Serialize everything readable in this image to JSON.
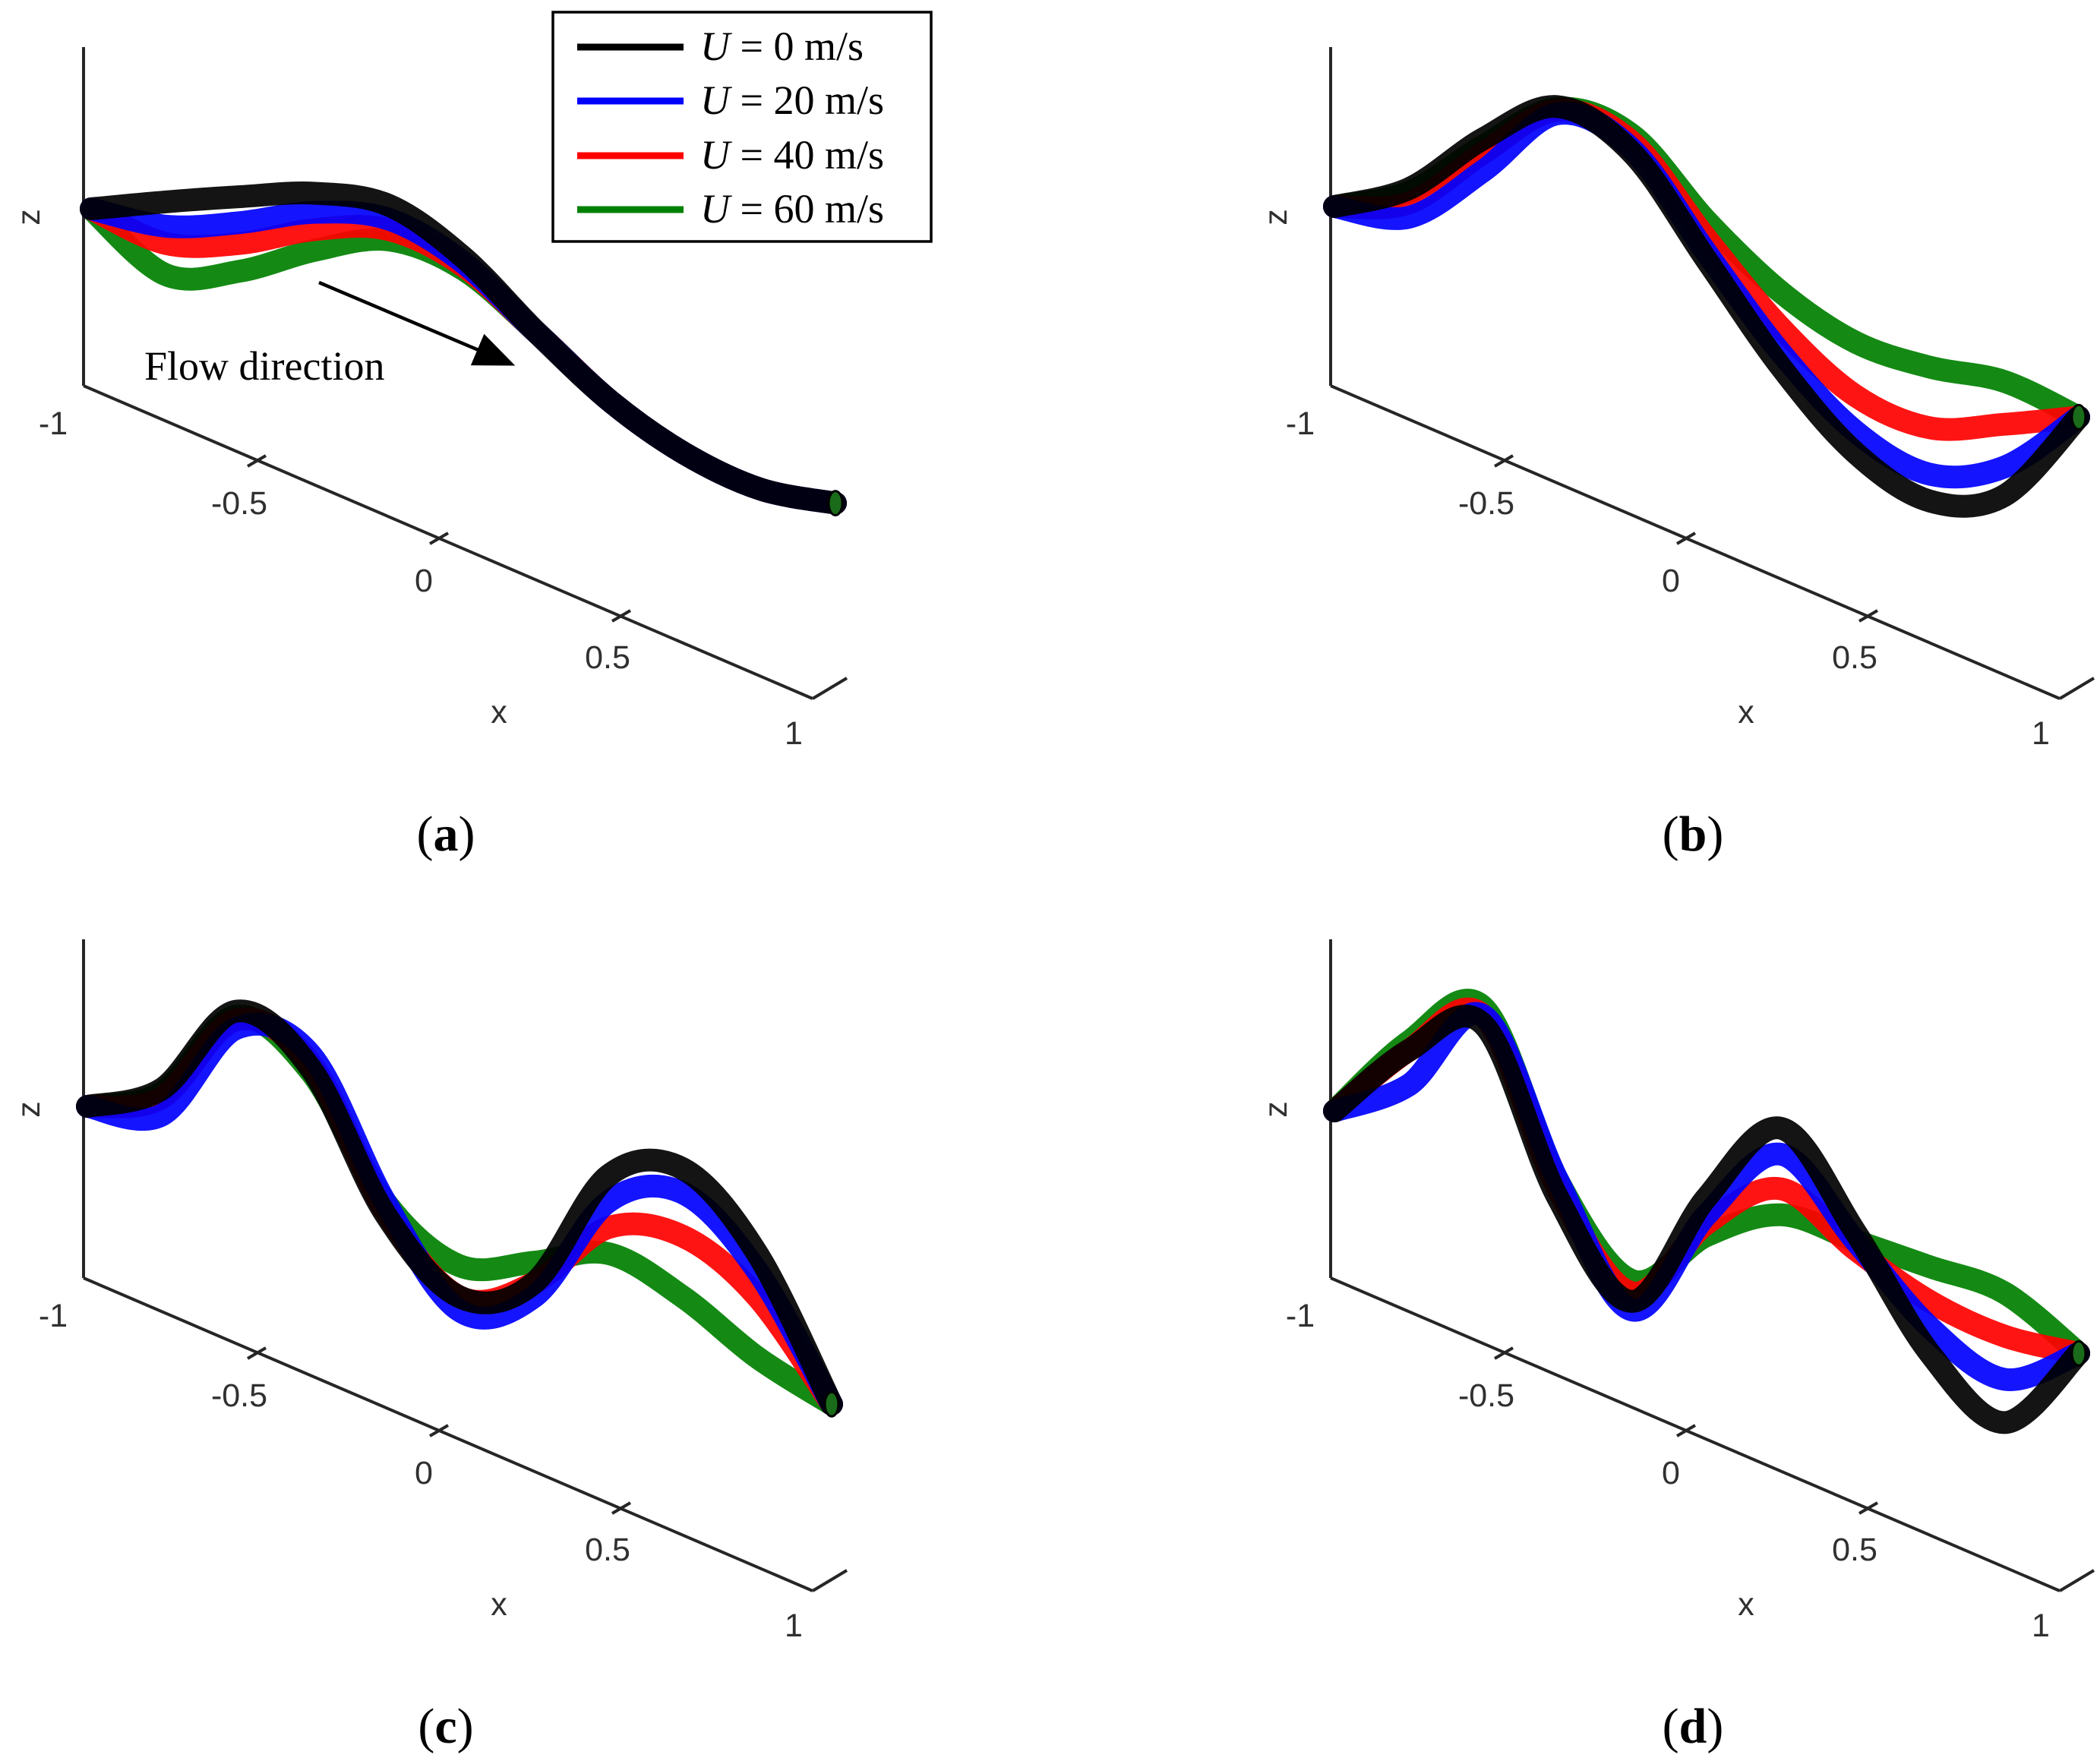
{
  "figure": {
    "type": "multi-panel 3D line plot (x-z projection)",
    "legend": {
      "position": "top-right of panel (a)",
      "entries": [
        {
          "symbol": "U",
          "text": " = 0 m/s",
          "color": "#000000"
        },
        {
          "symbol": "U",
          "text": " = 20 m/s",
          "color": "#0000ff"
        },
        {
          "symbol": "U",
          "text": " = 40 m/s",
          "color": "#ff0000"
        },
        {
          "symbol": "U",
          "text": " = 60 m/s",
          "color": "#008000"
        }
      ]
    },
    "annotation": {
      "text": "Flow direction",
      "panel": "a"
    }
  },
  "chart_data": [
    {
      "type": "line",
      "panel": "a",
      "caption": {
        "open": "(",
        "label": "a",
        "close": ")"
      },
      "xlabel": "x",
      "zlabel": "z",
      "x_ticks": [
        "-1",
        "-0.5",
        "0",
        "0.5",
        "1"
      ],
      "xlim": [
        -1,
        1
      ],
      "zlim": [
        -2,
        2.2
      ],
      "x": [
        -1,
        -0.8,
        -0.6,
        -0.4,
        -0.2,
        0,
        0.2,
        0.4,
        0.6,
        0.8,
        1
      ],
      "series": [
        {
          "name": "U = 0 m/s",
          "color": "#000000",
          "values": [
            0,
            0.04,
            0.07,
            0.09,
            0.02,
            -0.28,
            -0.72,
            -1.12,
            -1.42,
            -1.62,
            -1.7
          ]
        },
        {
          "name": "U = 20 m/s",
          "color": "#0000ff",
          "values": [
            0,
            -0.1,
            -0.08,
            -0.02,
            -0.06,
            -0.31,
            -0.72,
            -1.12,
            -1.42,
            -1.62,
            -1.7
          ]
        },
        {
          "name": "U = 40 m/s",
          "color": "#ff0000",
          "values": [
            0,
            -0.2,
            -0.2,
            -0.12,
            -0.12,
            -0.33,
            -0.72,
            -1.12,
            -1.42,
            -1.62,
            -1.7
          ]
        },
        {
          "name": "U = 60 m/s",
          "color": "#008000",
          "values": [
            0,
            -0.38,
            -0.36,
            -0.24,
            -0.18,
            -0.35,
            -0.72,
            -1.12,
            -1.42,
            -1.62,
            -1.7
          ]
        }
      ]
    },
    {
      "type": "line",
      "panel": "b",
      "caption": {
        "open": "(",
        "label": "b",
        "close": ")"
      },
      "xlabel": "x",
      "zlabel": "z",
      "x_ticks": [
        "-1",
        "-0.5",
        "0",
        "0.5",
        "1"
      ],
      "xlim": [
        -1,
        1
      ],
      "zlim": [
        -2,
        2.2
      ],
      "x": [
        -1,
        -0.8,
        -0.6,
        -0.4,
        -0.2,
        0,
        0.2,
        0.4,
        0.6,
        0.8,
        1
      ],
      "series": [
        {
          "name": "U = 0 m/s",
          "color": "#000000",
          "values": [
            0,
            0.1,
            0.38,
            0.56,
            0.3,
            -0.3,
            -0.9,
            -1.38,
            -1.65,
            -1.62,
            -1.18
          ]
        },
        {
          "name": "U = 20 m/s",
          "color": "#0000ff",
          "values": [
            0,
            -0.06,
            0.2,
            0.52,
            0.32,
            -0.26,
            -0.82,
            -1.26,
            -1.5,
            -1.46,
            -1.18
          ]
        },
        {
          "name": "U = 40 m/s",
          "color": "#ff0000",
          "values": [
            0,
            0.02,
            0.3,
            0.54,
            0.36,
            -0.18,
            -0.68,
            -1.06,
            -1.24,
            -1.22,
            -1.18
          ]
        },
        {
          "name": "U = 60 m/s",
          "color": "#008000",
          "values": [
            0,
            0.08,
            0.34,
            0.55,
            0.4,
            -0.08,
            -0.48,
            -0.76,
            -0.9,
            -0.98,
            -1.18
          ]
        }
      ]
    },
    {
      "type": "line",
      "panel": "c",
      "caption": {
        "open": "(",
        "label": "c",
        "close": ")"
      },
      "xlabel": "x",
      "zlabel": "z",
      "x_ticks": [
        "-1",
        "-0.5",
        "0",
        "0.5",
        "1"
      ],
      "xlim": [
        -1,
        1
      ],
      "zlim": [
        -2,
        2.2
      ],
      "x": [
        -1,
        -0.8,
        -0.6,
        -0.4,
        -0.2,
        0,
        0.2,
        0.4,
        0.6,
        0.8,
        1
      ],
      "series": [
        {
          "name": "U = 0 m/s",
          "color": "#000000",
          "values": [
            0,
            0.1,
            0.55,
            0.22,
            -0.62,
            -1.1,
            -1.02,
            -0.4,
            -0.36,
            -0.85,
            -1.72
          ]
        },
        {
          "name": "U = 20 m/s",
          "color": "#0000ff",
          "values": [
            0,
            -0.05,
            0.45,
            0.3,
            -0.55,
            -1.18,
            -1.1,
            -0.55,
            -0.5,
            -0.95,
            -1.72
          ]
        },
        {
          "name": "U = 40 m/s",
          "color": "#ff0000",
          "values": [
            0,
            0.05,
            0.5,
            0.25,
            -0.6,
            -1.1,
            -1.02,
            -0.7,
            -0.75,
            -1.1,
            -1.72
          ]
        },
        {
          "name": "U = 60 m/s",
          "color": "#008000",
          "values": [
            0,
            0.08,
            0.52,
            0.2,
            -0.55,
            -0.92,
            -0.9,
            -0.85,
            -1.1,
            -1.45,
            -1.72
          ]
        }
      ]
    },
    {
      "type": "line",
      "panel": "d",
      "caption": {
        "open": "(",
        "label": "d",
        "close": ")"
      },
      "xlabel": "x",
      "zlabel": "z",
      "x_ticks": [
        "-1",
        "-0.5",
        "0",
        "0.5",
        "1"
      ],
      "xlim": [
        -1,
        1
      ],
      "zlim": [
        -2,
        2.2
      ],
      "x": [
        -1,
        -0.8,
        -0.6,
        -0.4,
        -0.2,
        0,
        0.2,
        0.4,
        0.6,
        0.8,
        1
      ],
      "series": [
        {
          "name": "U = 0 m/s",
          "color": "#000000",
          "values": [
            0,
            0.35,
            0.5,
            -0.5,
            -1.1,
            -0.5,
            -0.1,
            -0.7,
            -1.4,
            -1.8,
            -1.4
          ]
        },
        {
          "name": "U = 20 m/s",
          "color": "#0000ff",
          "values": [
            0,
            0.15,
            0.55,
            -0.4,
            -1.15,
            -0.6,
            -0.25,
            -0.75,
            -1.25,
            -1.55,
            -1.4
          ]
        },
        {
          "name": "U = 40 m/s",
          "color": "#ff0000",
          "values": [
            0,
            0.35,
            0.55,
            -0.45,
            -1.05,
            -0.65,
            -0.45,
            -0.8,
            -1.1,
            -1.3,
            -1.4
          ]
        },
        {
          "name": "U = 60 m/s",
          "color": "#008000",
          "values": [
            0,
            0.4,
            0.6,
            -0.4,
            -0.98,
            -0.72,
            -0.6,
            -0.75,
            -0.9,
            -1.05,
            -1.4
          ]
        }
      ]
    }
  ]
}
